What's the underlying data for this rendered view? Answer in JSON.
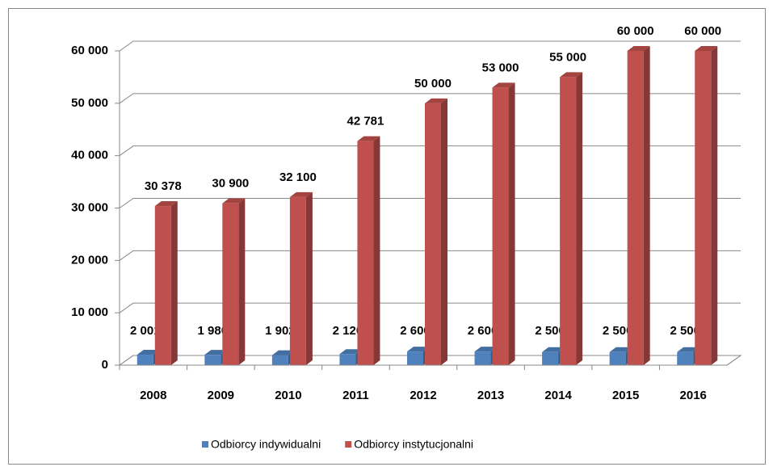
{
  "chart_data": {
    "type": "bar3d",
    "categories": [
      "2008",
      "2009",
      "2010",
      "2011",
      "2012",
      "2013",
      "2014",
      "2015",
      "2016"
    ],
    "series": [
      {
        "name": "Odbiorcy indywidualni",
        "color": "#4f81bd",
        "values": [
          2001,
          1980,
          1902,
          2120,
          2600,
          2600,
          2500,
          2500,
          2500
        ],
        "value_labels": [
          "2 001",
          "1 980",
          "1 902",
          "2 120",
          "2 600",
          "2 600",
          "2 500",
          "2 500",
          "2 500"
        ]
      },
      {
        "name": "Odbiorcy instytucjonalni",
        "color": "#c0504d",
        "values": [
          30378,
          30900,
          32100,
          42781,
          50000,
          53000,
          55000,
          60000,
          60000
        ],
        "value_labels": [
          "30 378",
          "30 900",
          "32 100",
          "42 781",
          "50 000",
          "53 000",
          "55 000",
          "60 000",
          "60 000"
        ]
      }
    ],
    "ylim": [
      0,
      60000
    ],
    "yticks": [
      0,
      {
        "value": 10000,
        "label": "10 000"
      },
      {
        "value": 20000,
        "label": "20 000"
      },
      {
        "value": 30000,
        "label": "30 000"
      },
      {
        "value": 40000,
        "label": "40 000"
      },
      {
        "value": 50000,
        "label": "50 000"
      },
      {
        "value": 60000,
        "label": "60 000"
      }
    ],
    "grid": true,
    "legend": "bottom"
  }
}
